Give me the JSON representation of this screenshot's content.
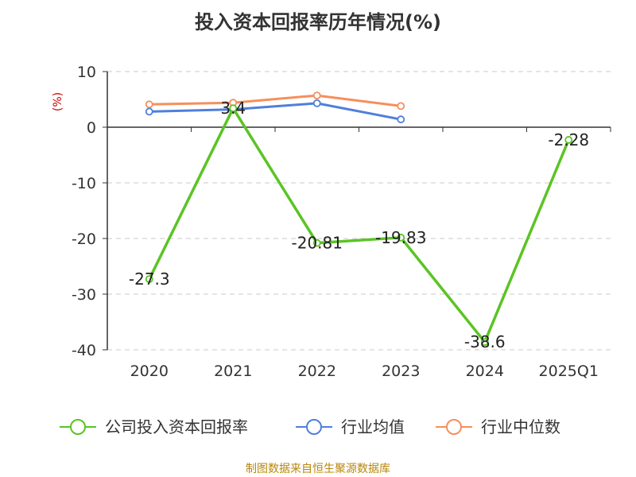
{
  "chart_data": {
    "type": "line",
    "title": "投入资本回报率历年情况(%)",
    "ylabel": "(%)",
    "categories": [
      "2020",
      "2021",
      "2022",
      "2023",
      "2024",
      "2025Q1"
    ],
    "yticks": [
      10,
      0,
      -10,
      -20,
      -30,
      -40
    ],
    "ylim": [
      -40,
      10
    ],
    "grid": true,
    "legend_position": "bottom",
    "series": [
      {
        "name": "公司投入资本回报率",
        "color": "#5bc424",
        "values": [
          -27.3,
          3.4,
          -20.81,
          -19.83,
          -38.6,
          -2.28
        ],
        "labels": [
          "-27.3",
          "3.4",
          "-20.81",
          "-19.83",
          "-38.6",
          "-2.28"
        ]
      },
      {
        "name": "行业均值",
        "color": "#4f7fdb",
        "values": [
          2.8,
          3.2,
          4.3,
          1.4,
          null,
          null
        ]
      },
      {
        "name": "行业中位数",
        "color": "#f58f5c",
        "values": [
          4.1,
          4.4,
          5.7,
          3.8,
          null,
          null
        ]
      }
    ]
  },
  "source_text": "制图数据来自恒生聚源数据库"
}
